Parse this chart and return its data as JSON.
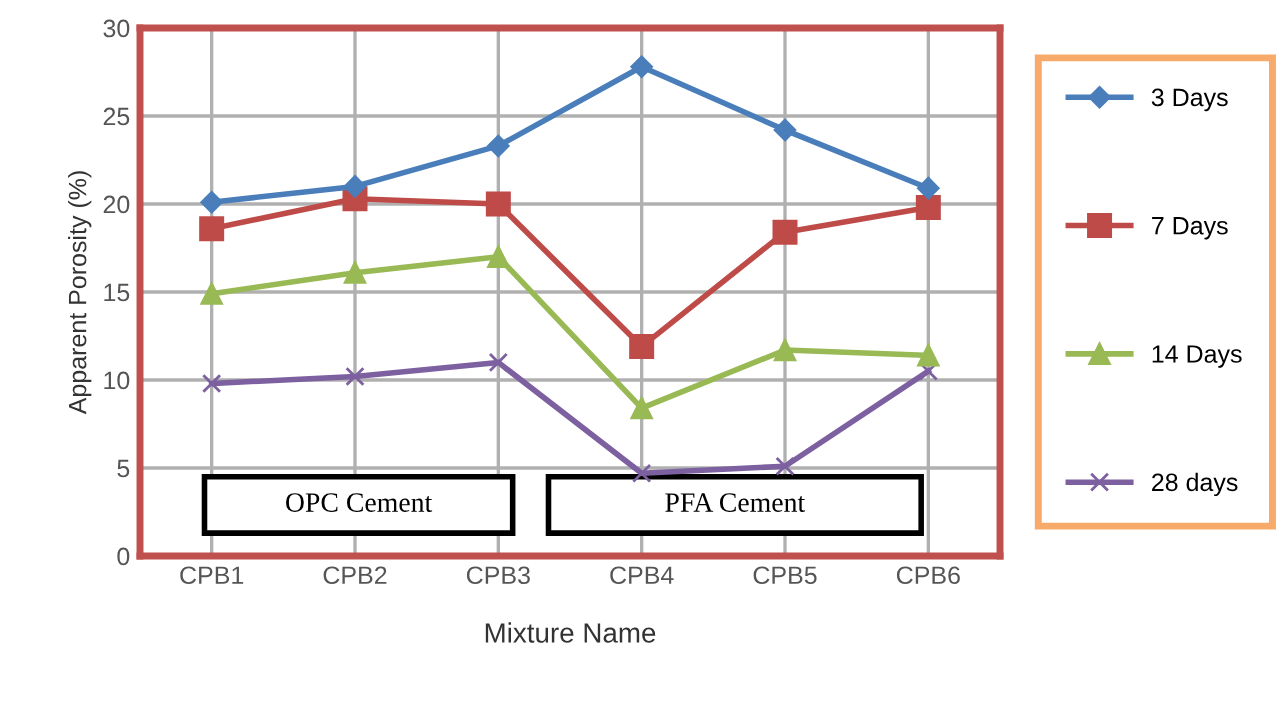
{
  "chart_data": {
    "type": "line",
    "xlabel": "Mixture Name",
    "ylabel": "Apparent Porosity (%)",
    "categories": [
      "CPB1",
      "CPB2",
      "CPB3",
      "CPB4",
      "CPB5",
      "CPB6"
    ],
    "series": [
      {
        "name": "3 Days",
        "color": "#4a7ebb",
        "marker": "diamond",
        "values": [
          20.1,
          21.0,
          23.3,
          27.8,
          24.2,
          20.9
        ]
      },
      {
        "name": "7 Days",
        "color": "#be4b48",
        "marker": "square",
        "values": [
          18.6,
          20.3,
          20.0,
          11.9,
          18.4,
          19.8
        ]
      },
      {
        "name": "14 Days",
        "color": "#98b954",
        "marker": "triangle",
        "values": [
          14.9,
          16.1,
          17.0,
          8.4,
          11.7,
          11.4
        ]
      },
      {
        "name": "28 days",
        "color": "#7d60a0",
        "marker": "cross",
        "values": [
          9.8,
          10.2,
          11.0,
          4.7,
          5.1,
          10.5
        ]
      }
    ],
    "ylim": [
      0,
      30
    ],
    "yticks": [
      0,
      5,
      10,
      15,
      20,
      25,
      30
    ],
    "grid": true,
    "legend": "right",
    "annotations": [
      "OPC Cement",
      "PFA Cement"
    ]
  }
}
